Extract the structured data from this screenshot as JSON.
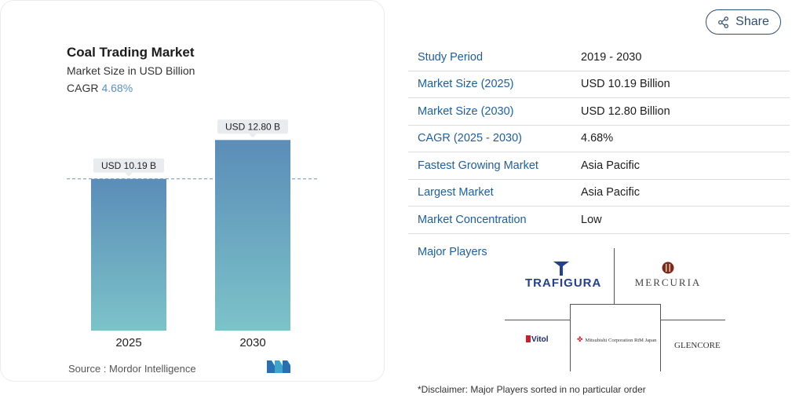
{
  "chart": {
    "title": "Coal Trading Market",
    "subtitle": "Market Size in USD Billion",
    "cagr_label": "CAGR",
    "cagr_value": "4.68%",
    "source": "Source : Mordor Intelligence"
  },
  "chart_data": {
    "type": "bar",
    "title": "Coal Trading Market",
    "subtitle": "Market Size in USD Billion",
    "categories": [
      "2025",
      "2030"
    ],
    "values": [
      10.19,
      12.8
    ],
    "data_labels": [
      "USD 10.19 B",
      "USD 12.80 B"
    ],
    "reference_line_value": 10.19,
    "ylim": [
      0,
      13.5
    ],
    "colors": {
      "bar_top": "#5b8db8",
      "bar_bottom": "#7cc3c9",
      "label_bg": "#e9ecef"
    }
  },
  "share": {
    "label": "Share",
    "icon": "share-icon"
  },
  "info": {
    "rows": [
      {
        "key": "Study Period",
        "value": "2019 - 2030"
      },
      {
        "key": "Market Size (2025)",
        "value": "USD 10.19 Billion"
      },
      {
        "key": "Market Size (2030)",
        "value": "USD 12.80 Billion"
      },
      {
        "key": "CAGR (2025 - 2030)",
        "value": "4.68%"
      },
      {
        "key": "Fastest Growing Market",
        "value": "Asia Pacific"
      },
      {
        "key": "Largest Market",
        "value": "Asia Pacific"
      },
      {
        "key": "Market Concentration",
        "value": "Low"
      }
    ],
    "players_label": "Major Players",
    "players": {
      "trafigura": "TRAFIGURA",
      "mercuria": "MERCURIA",
      "vitol": "Vitol",
      "mitsubishi": "Mitsubishi Corporation RtM Japan",
      "glencore": "GLENCORE"
    },
    "disclaimer": "*Disclaimer: Major Players sorted in no particular order"
  },
  "colors": {
    "key_text": "#1f5fa0",
    "share_border": "#2e4f6e",
    "cagr_accent": "#5b8fc0"
  }
}
